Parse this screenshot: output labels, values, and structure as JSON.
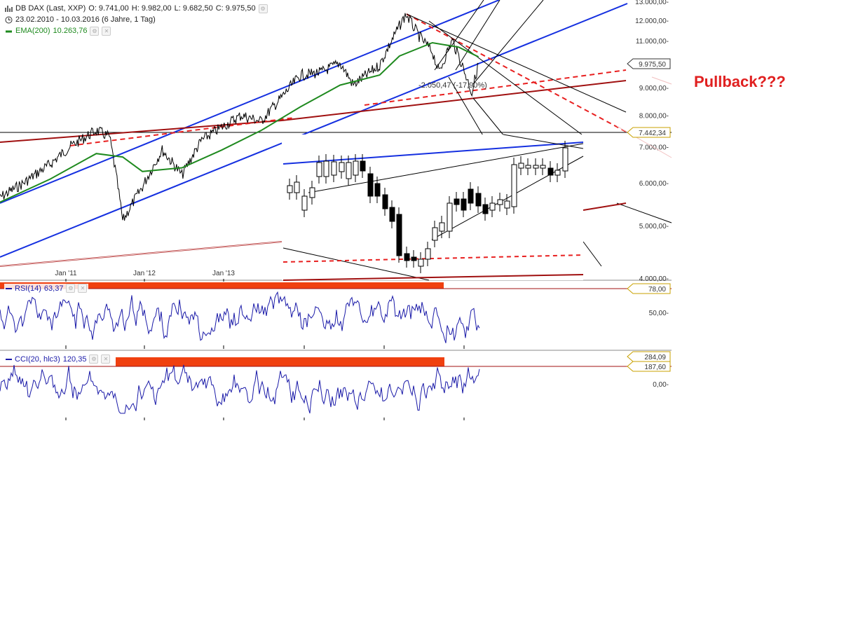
{
  "header": {
    "symbol_line": "DB DAX (Last, XXP)",
    "ohlc": {
      "o": "O: 9.741,00",
      "h": "H: 9.982,00",
      "l": "L: 9.682,50",
      "c": "C: 9.975,50"
    },
    "range": "23.02.2010 - 10.03.2016 (6 Jahre, 1 Tag)",
    "ema_label": "EMA(200)",
    "ema_value": "10.263,76"
  },
  "annotation": {
    "pullback": "Pullback???",
    "drawdown": "-2.050,47 (-17,90%)"
  },
  "colors": {
    "price": "#000000",
    "ema": "#1f8a1f",
    "channel": "#1530e0",
    "support": "#a01010",
    "dashed": "#e82020",
    "rsi": "#1a1aa8",
    "band": "#f04010",
    "pullback": "#e02020"
  },
  "chart_data": [
    {
      "type": "line",
      "title": "DB DAX (Last, XXP)",
      "ylim": [
        4000,
        13000
      ],
      "y_ticks": [
        "4.000,00",
        "5.000,00",
        "6.000,00",
        "7.000,00",
        "8.000,00",
        "9.000,00",
        "10.000,00",
        "11.000,00",
        "12.000,00",
        "13.000,00"
      ],
      "x_ticks": [
        "Jan '11",
        "Jan '12",
        "Jan '13"
      ],
      "price_markers": [
        "9.975,50",
        "7.442,34"
      ],
      "series": [
        {
          "name": "DB DAX",
          "x": [
            "2010-02",
            "2010-06",
            "2010-10",
            "2011-01",
            "2011-05",
            "2011-07",
            "2011-09",
            "2011-12",
            "2012-03",
            "2012-06",
            "2012-09",
            "2012-12",
            "2013-03",
            "2013-06",
            "2013-09",
            "2013-12",
            "2014-03",
            "2014-06",
            "2014-08",
            "2014-12",
            "2015-03",
            "2015-04",
            "2015-06",
            "2015-08",
            "2015-09",
            "2015-11",
            "2015-12",
            "2016-02",
            "2016-03"
          ],
          "values": [
            5600,
            6000,
            6500,
            7000,
            7500,
            7300,
            5100,
            5900,
            6900,
            6200,
            7200,
            7600,
            8000,
            7800,
            8600,
            9500,
            9600,
            10000,
            9100,
            9900,
            11700,
            12300,
            11200,
            10500,
            9600,
            11000,
            10300,
            8800,
            9975
          ]
        },
        {
          "name": "EMA(200)",
          "x": [
            "2010-02",
            "2010-10",
            "2011-05",
            "2011-09",
            "2011-12",
            "2012-06",
            "2012-12",
            "2013-06",
            "2013-12",
            "2014-06",
            "2014-12",
            "2015-03",
            "2015-08",
            "2015-12",
            "2016-03"
          ],
          "values": [
            5500,
            6100,
            6800,
            6700,
            6300,
            6400,
            6900,
            7500,
            8300,
            9100,
            9500,
            10300,
            10900,
            10700,
            10263
          ]
        }
      ]
    },
    {
      "type": "line",
      "title": "RSI(14)",
      "value": "63,37",
      "y_ticks": [
        "50,00"
      ],
      "markers": [
        "78,00"
      ]
    },
    {
      "type": "line",
      "title": "CCI(20, hlc3)",
      "value": "120,35",
      "y_ticks": [
        "0,00"
      ],
      "markers": [
        "284,09",
        "187,60"
      ]
    }
  ]
}
